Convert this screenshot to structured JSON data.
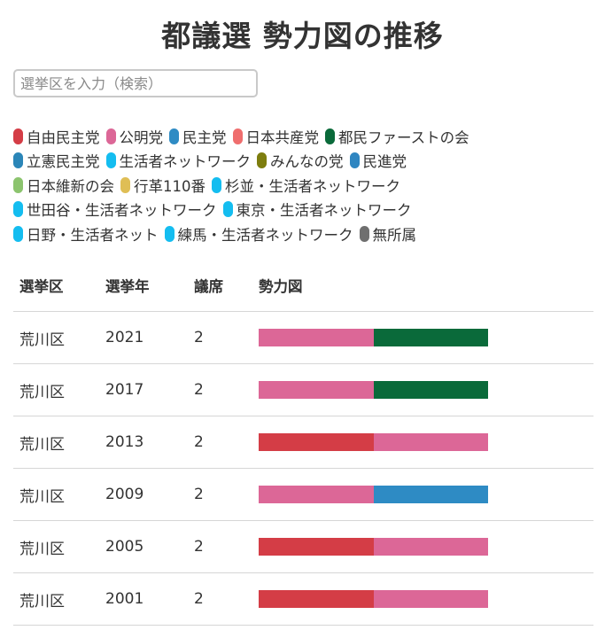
{
  "header": {
    "title": "都議選 勢力図の推移"
  },
  "search": {
    "placeholder": "選挙区を入力（検索）"
  },
  "legend": {
    "rows": [
      [
        {
          "label": "自由民主党",
          "color": "#d43d46"
        },
        {
          "label": "公明党",
          "color": "#dc6797"
        },
        {
          "label": "民主党",
          "color": "#2e8bc4"
        },
        {
          "label": "日本共産党",
          "color": "#ef6e6e"
        },
        {
          "label": "都民ファーストの会",
          "color": "#0a6a3a"
        }
      ],
      [
        {
          "label": "立憲民主党",
          "color": "#2b86b8"
        },
        {
          "label": "生活者ネットワーク",
          "color": "#14bdf0"
        },
        {
          "label": "みんなの党",
          "color": "#7d7d0e"
        },
        {
          "label": "民進党",
          "color": "#2f86c1"
        }
      ],
      [
        {
          "label": "日本維新の会",
          "color": "#8cc46e"
        },
        {
          "label": "行革110番",
          "color": "#dfbe55"
        },
        {
          "label": "杉並・生活者ネットワーク",
          "color": "#14bdf0"
        }
      ],
      [
        {
          "label": "世田谷・生活者ネットワーク",
          "color": "#14bdf0"
        },
        {
          "label": "東京・生活者ネットワーク",
          "color": "#14bdf0"
        }
      ],
      [
        {
          "label": "日野・生活者ネット",
          "color": "#14bdf0"
        },
        {
          "label": "練馬・生活者ネットワーク",
          "color": "#14bdf0"
        },
        {
          "label": "無所属",
          "color": "#6f6f6f"
        }
      ]
    ]
  },
  "table": {
    "headers": [
      "選挙区",
      "選挙年",
      "議席",
      "勢力図"
    ],
    "rows": [
      {
        "district": "荒川区",
        "year": "2021",
        "seats": "2",
        "segments": [
          "#dc6797",
          "#0a6a3a"
        ]
      },
      {
        "district": "荒川区",
        "year": "2017",
        "seats": "2",
        "segments": [
          "#dc6797",
          "#0a6a3a"
        ]
      },
      {
        "district": "荒川区",
        "year": "2013",
        "seats": "2",
        "segments": [
          "#d43d46",
          "#dc6797"
        ]
      },
      {
        "district": "荒川区",
        "year": "2009",
        "seats": "2",
        "segments": [
          "#dc6797",
          "#2e8bc4"
        ]
      },
      {
        "district": "荒川区",
        "year": "2005",
        "seats": "2",
        "segments": [
          "#d43d46",
          "#dc6797"
        ]
      },
      {
        "district": "荒川区",
        "year": "2001",
        "seats": "2",
        "segments": [
          "#d43d46",
          "#dc6797"
        ]
      }
    ]
  }
}
